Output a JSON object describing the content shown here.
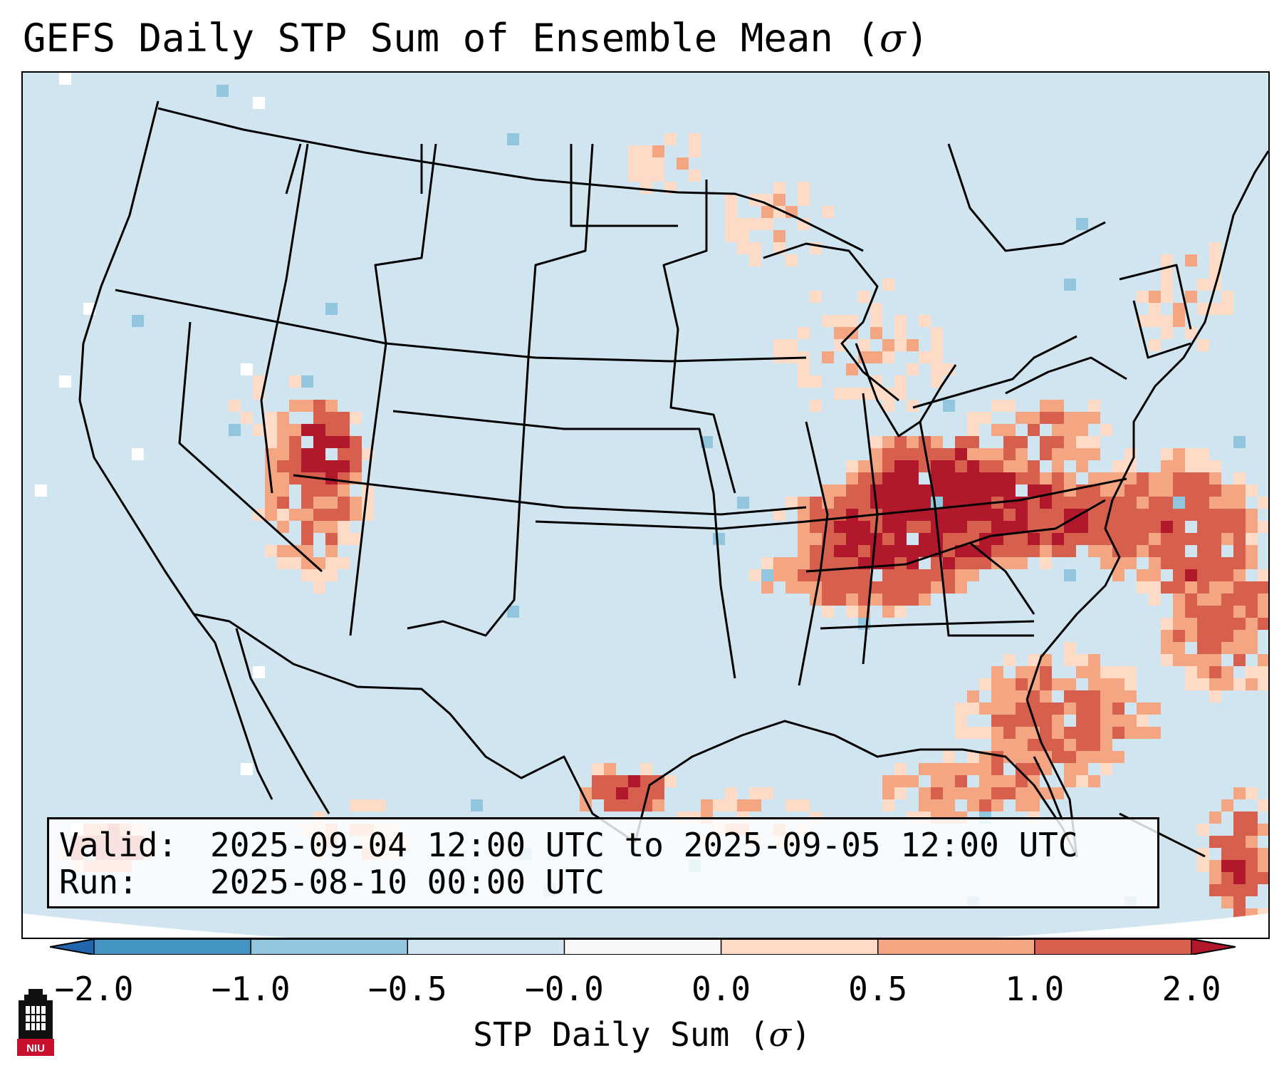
{
  "title": {
    "text": "GEFS Daily STP Sum of Ensemble Mean (",
    "symbol": "σ",
    "close": ")"
  },
  "info": {
    "valid_key": "Valid:",
    "valid_value": "2025-09-04 12:00 UTC to 2025-09-05 12:00 UTC",
    "run_key": "Run:",
    "run_value": "2025-08-10 00:00 UTC"
  },
  "colorbar": {
    "ticks": [
      "−2.0",
      "−1.0",
      "−0.5",
      "−0.0",
      "0.0",
      "0.5",
      "1.0",
      "2.0"
    ],
    "colors": [
      "#2166ac",
      "#4393c3",
      "#92c5de",
      "#d1e5f0",
      "#f7f7f7",
      "#fddbc7",
      "#f4a582",
      "#d6604d",
      "#b2182b"
    ],
    "label_text": "STP Daily Sum (",
    "label_symbol": "σ",
    "label_close": ")"
  },
  "map": {
    "background_color": "#d1e5f0",
    "anomaly_levels": {
      "light": 0.25,
      "medium": 0.75,
      "strong": 1.5,
      "extreme": 2.5,
      "negative": -0.75,
      "missing": null
    },
    "logo_text": "NIU"
  }
}
